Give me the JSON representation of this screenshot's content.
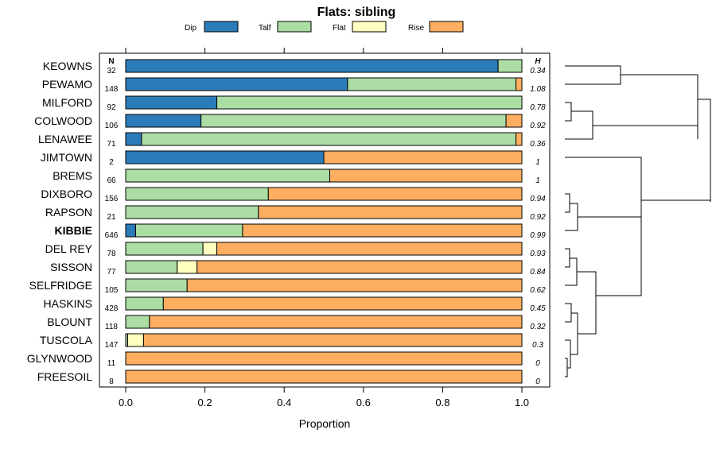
{
  "chart_data": {
    "type": "bar",
    "stacked": "horizontal-proportion",
    "title": "Flats: sibling",
    "xlabel": "Proportion",
    "ylabel": "",
    "xlim": [
      0,
      1
    ],
    "xticks": [
      "0.0",
      "0.2",
      "0.4",
      "0.6",
      "0.8",
      "1.0"
    ],
    "xtick_values": [
      0,
      0.2,
      0.4,
      0.6,
      0.8,
      1.0
    ],
    "n_header": "N",
    "h_header": "H",
    "legend_position": "top",
    "series": [
      {
        "name": "Dip",
        "color": "#2b7bb9"
      },
      {
        "name": "Talf",
        "color": "#abdda4"
      },
      {
        "name": "Flat",
        "color": "#ffffbf"
      },
      {
        "name": "Rise",
        "color": "#fdae61"
      }
    ],
    "categories": [
      "KEOWNS",
      "PEWAMO",
      "MILFORD",
      "COLWOOD",
      "LENAWEE",
      "JIMTOWN",
      "BREMS",
      "DIXBORO",
      "RAPSON",
      "KIBBIE",
      "DEL REY",
      "SISSON",
      "SELFRIDGE",
      "HASKINS",
      "BLOUNT",
      "TUSCOLA",
      "GLYNWOOD",
      "FREESOIL"
    ],
    "highlight": "KIBBIE",
    "n": [
      "32",
      "148",
      "92",
      "106",
      "71",
      "2",
      "66",
      "156",
      "21",
      "646",
      "78",
      "77",
      "105",
      "428",
      "118",
      "147",
      "11",
      "8"
    ],
    "h": [
      "0.34",
      "1.08",
      "0.78",
      "0.92",
      "0.36",
      "1",
      "1",
      "0.94",
      "0.92",
      "0.99",
      "0.93",
      "0.84",
      "0.62",
      "0.45",
      "0.32",
      "0.3",
      "0",
      "0"
    ],
    "proportions": [
      [
        0.94,
        0.06,
        0,
        0
      ],
      [
        0.56,
        0.425,
        0,
        0.015
      ],
      [
        0.23,
        0.77,
        0,
        0
      ],
      [
        0.19,
        0.77,
        0,
        0.04
      ],
      [
        0.04,
        0.945,
        0,
        0.015
      ],
      [
        0.5,
        0,
        0,
        0.5
      ],
      [
        0,
        0.515,
        0,
        0.485
      ],
      [
        0,
        0.36,
        0,
        0.64
      ],
      [
        0,
        0.335,
        0,
        0.665
      ],
      [
        0.025,
        0.27,
        0,
        0.705
      ],
      [
        0,
        0.195,
        0.035,
        0.77
      ],
      [
        0,
        0.13,
        0.05,
        0.82
      ],
      [
        0,
        0.155,
        0,
        0.845
      ],
      [
        0,
        0.095,
        0,
        0.905
      ],
      [
        0,
        0.06,
        0,
        0.94
      ],
      [
        0,
        0.005,
        0.04,
        0.955
      ],
      [
        0,
        0,
        0,
        1
      ],
      [
        0,
        0,
        0,
        1
      ]
    ]
  }
}
